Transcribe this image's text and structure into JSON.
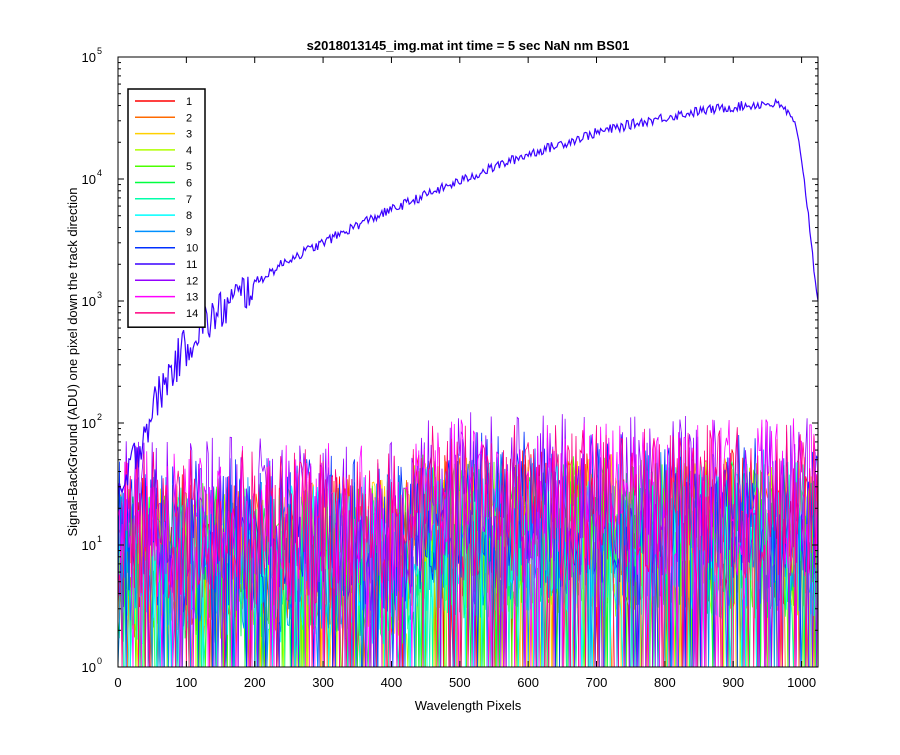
{
  "window": {
    "title": "s2018013145_img.mat int time = 5 sec  NaN nm BS01"
  },
  "chart_data": {
    "type": "line",
    "title": "s2018013145_img.mat int time = 5 sec  NaN nm BS01",
    "xlabel": "Wavelength Pixels",
    "ylabel": "Signal-BackGround (ADU) one pixel down the track direction",
    "xlim": [
      0,
      1024
    ],
    "ylim": [
      1,
      100000
    ],
    "yscale": "log",
    "x_ticks": [
      0,
      100,
      200,
      300,
      400,
      500,
      600,
      700,
      800,
      900,
      1000
    ],
    "x_tick_labels": [
      "0",
      "100",
      "200",
      "300",
      "400",
      "500",
      "600",
      "700",
      "800",
      "900",
      "1000"
    ],
    "y_ticks": [
      1,
      10,
      100,
      1000,
      10000,
      100000
    ],
    "y_tick_labels": [
      {
        "base": "10",
        "exp": "0"
      },
      {
        "base": "10",
        "exp": "1"
      },
      {
        "base": "10",
        "exp": "2"
      },
      {
        "base": "10",
        "exp": "3"
      },
      {
        "base": "10",
        "exp": "4"
      },
      {
        "base": "10",
        "exp": "5"
      }
    ],
    "grid": false,
    "legend_position": "top-left",
    "series": [
      {
        "name": "1",
        "color": "#ff0000",
        "kind": "noise",
        "level": 10
      },
      {
        "name": "2",
        "color": "#ff6a00",
        "kind": "noise",
        "level": 9
      },
      {
        "name": "3",
        "color": "#ffd000",
        "kind": "noise",
        "level": 9
      },
      {
        "name": "4",
        "color": "#b0ff00",
        "kind": "noise",
        "level": 8
      },
      {
        "name": "5",
        "color": "#4cff00",
        "kind": "noise",
        "level": 9
      },
      {
        "name": "6",
        "color": "#00ff40",
        "kind": "noise",
        "level": 8
      },
      {
        "name": "7",
        "color": "#00ffaa",
        "kind": "noise",
        "level": 8
      },
      {
        "name": "8",
        "color": "#00ffff",
        "kind": "noise",
        "level": 8
      },
      {
        "name": "9",
        "color": "#0090ff",
        "kind": "noise",
        "level": 10
      },
      {
        "name": "10",
        "color": "#0030ff",
        "kind": "noise",
        "level": 14
      },
      {
        "name": "11",
        "color": "#3a00ff",
        "kind": "signal",
        "x": [
          0,
          20,
          40,
          60,
          80,
          100,
          120,
          150,
          200,
          250,
          300,
          350,
          400,
          450,
          500,
          550,
          600,
          650,
          700,
          750,
          800,
          850,
          900,
          930,
          950,
          962,
          975,
          990,
          1000,
          1010,
          1020,
          1024
        ],
        "y": [
          20,
          45,
          90,
          170,
          280,
          430,
          600,
          820,
          1400,
          2200,
          3000,
          4200,
          5600,
          7400,
          9600,
          12500,
          16000,
          19500,
          24000,
          28000,
          32000,
          36000,
          39000,
          40500,
          41500,
          41000,
          38000,
          28000,
          15000,
          5000,
          1500,
          1000
        ]
      },
      {
        "name": "12",
        "color": "#9400ff",
        "kind": "noise",
        "level": 20
      },
      {
        "name": "13",
        "color": "#ff00ff",
        "kind": "noise",
        "level": 18
      },
      {
        "name": "14",
        "color": "#ff0080",
        "kind": "noise",
        "level": 16
      }
    ]
  }
}
